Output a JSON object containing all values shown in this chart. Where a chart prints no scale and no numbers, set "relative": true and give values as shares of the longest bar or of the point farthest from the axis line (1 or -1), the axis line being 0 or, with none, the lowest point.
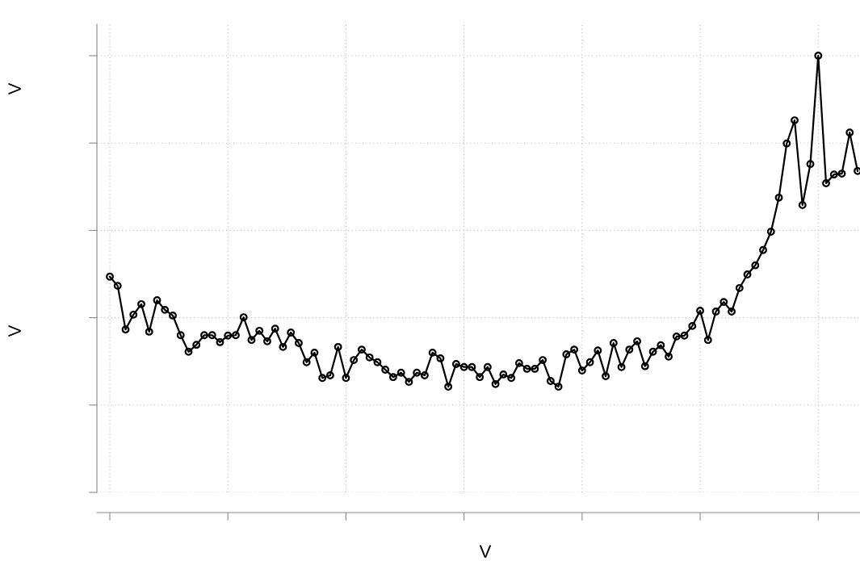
{
  "chart_data": {
    "type": "line",
    "relative": true,
    "xlabel": "V",
    "ylabel": "V",
    "annotations": [
      "V"
    ],
    "grid": true,
    "marker": "circle",
    "line_style": "solid",
    "categories": [
      null,
      null,
      null,
      null,
      null,
      null,
      null,
      null,
      null,
      null,
      null,
      null,
      null,
      null,
      null,
      null,
      null,
      null,
      null,
      null,
      null,
      null,
      null,
      null,
      null,
      null,
      null,
      null,
      null,
      null,
      null,
      null,
      null,
      null,
      null,
      null,
      null,
      null,
      null,
      null,
      null,
      null,
      null,
      null,
      null,
      null,
      null,
      null,
      null,
      null,
      null,
      null,
      null,
      null,
      null,
      null,
      null,
      null,
      null,
      null,
      null,
      null,
      null,
      null,
      null,
      null,
      null,
      null,
      null,
      null,
      null,
      null,
      null,
      null,
      null,
      null,
      null,
      null,
      null,
      null,
      null,
      null,
      null,
      null,
      null,
      null,
      null,
      null,
      null,
      null,
      null,
      null,
      null,
      null,
      null,
      null
    ],
    "series": [
      {
        "color": "#000000",
        "values": [
          0.494,
          0.473,
          0.373,
          0.407,
          0.431,
          0.368,
          0.44,
          0.418,
          0.405,
          0.36,
          0.322,
          0.338,
          0.36,
          0.36,
          0.344,
          0.359,
          0.36,
          0.401,
          0.349,
          0.37,
          0.346,
          0.375,
          0.333,
          0.366,
          0.342,
          0.298,
          0.32,
          0.262,
          0.268,
          0.333,
          0.262,
          0.303,
          0.327,
          0.309,
          0.298,
          0.281,
          0.264,
          0.274,
          0.253,
          0.274,
          0.268,
          0.32,
          0.307,
          0.242,
          0.294,
          0.287,
          0.287,
          0.264,
          0.287,
          0.248,
          0.27,
          0.262,
          0.296,
          0.283,
          0.283,
          0.303,
          0.255,
          0.242,
          0.316,
          0.327,
          0.279,
          0.298,
          0.325,
          0.266,
          0.342,
          0.287,
          0.327,
          0.346,
          0.289,
          0.322,
          0.337,
          0.311,
          0.357,
          0.359,
          0.381,
          0.416,
          0.349,
          0.414,
          0.436,
          0.414,
          0.468,
          0.499,
          0.52,
          0.555,
          0.597,
          0.675,
          0.799,
          0.852,
          0.658,
          0.752,
          1.0,
          0.708,
          0.728,
          0.73,
          0.824,
          0.736
        ]
      }
    ]
  }
}
